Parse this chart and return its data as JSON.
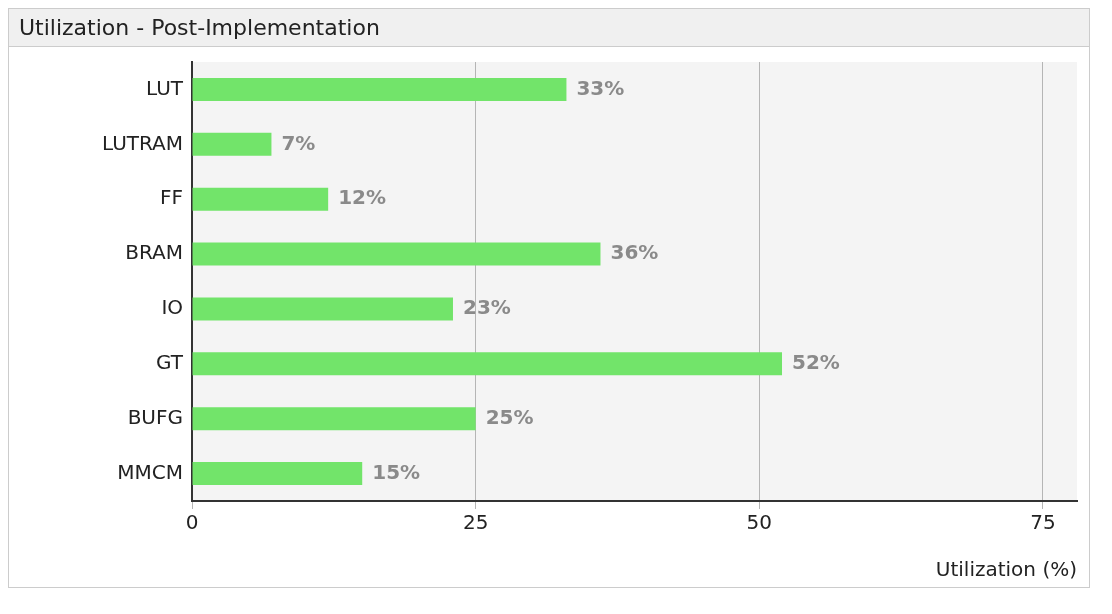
{
  "chart_data": {
    "type": "bar",
    "orientation": "horizontal",
    "title": "Utilization - Post-Implementation",
    "xlabel": "Utilization (%)",
    "categories": [
      "LUT",
      "LUTRAM",
      "FF",
      "BRAM",
      "IO",
      "GT",
      "BUFG",
      "MMCM"
    ],
    "values": [
      33,
      7,
      12,
      36,
      23,
      52,
      25,
      15
    ],
    "value_labels": [
      "33%",
      "7%",
      "12%",
      "36%",
      "23%",
      "52%",
      "25%",
      "15%"
    ],
    "color": "#72e46a",
    "xlim": [
      0,
      78
    ],
    "xticks": [
      0,
      25,
      50,
      75
    ],
    "grid": "x",
    "legend": false
  }
}
